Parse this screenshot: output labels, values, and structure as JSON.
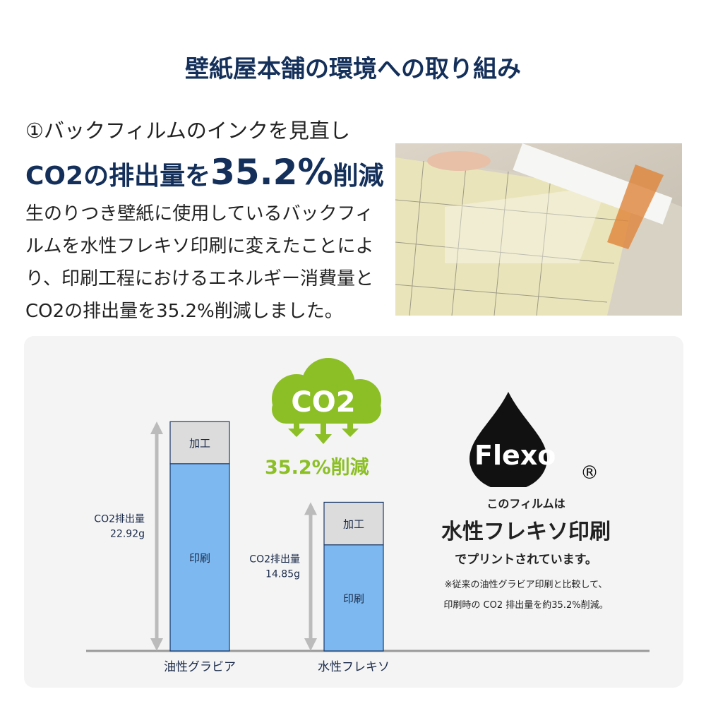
{
  "title": "壁紙屋本舗の環境への取り組み",
  "section": {
    "subtitle": "①バックフィルムのインクを見直し",
    "headline_pre": "CO2の排出量を",
    "headline_value": "35.2%",
    "headline_post": "削減",
    "body": "生のりつき壁紙に使用しているバックフィルムを水性フレキソ印刷に変えたことにより、印刷工程におけるエネルギー消費量とCO2の排出量を35.2%削減しました。"
  },
  "cloud": {
    "label": "CO2",
    "reduction": "35.2%削減",
    "color": "#8cbf26"
  },
  "flexo": {
    "logo": "Flexo",
    "registered": "®",
    "line1": "このフィルムは",
    "line2": "水性フレキソ印刷",
    "line3": "でプリントされています。",
    "note1": "※従来の油性グラビア印刷と比較して、",
    "note2": "印刷時の CO2 排出量を約35.2%削減。"
  },
  "chart_data": {
    "type": "bar",
    "stacked": true,
    "categories": [
      "油性グラビア",
      "水性フレキソ"
    ],
    "series": [
      {
        "name": "印刷",
        "values": [
          18.7,
          10.6
        ],
        "color": "#7db9f0"
      },
      {
        "name": "加工",
        "values": [
          4.2,
          4.25
        ],
        "color": "#dcdcdc"
      }
    ],
    "totals": [
      22.92,
      14.85
    ],
    "total_labels": [
      [
        "CO2排出量",
        "22.92g"
      ],
      [
        "CO2排出量",
        "14.85g"
      ]
    ],
    "ylim": [
      0,
      22.92
    ]
  }
}
